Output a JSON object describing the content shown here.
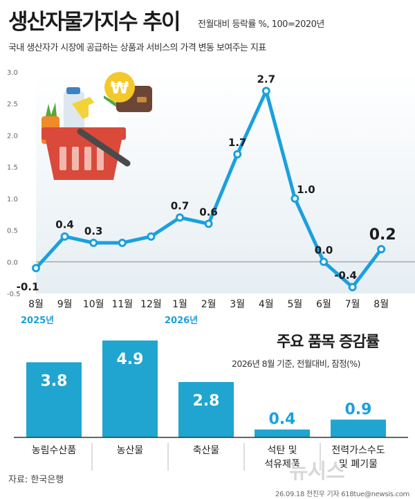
{
  "header": {
    "title": "생산자물가지수 추이",
    "unit": "전월대비 등락률 %, 100=2020년",
    "subtitle": "국내 생산자가 시장에 공급하는 상품과 서비스의 가격 변동 보여주는 지표"
  },
  "chart_data": [
    {
      "type": "line",
      "categories": [
        "8월",
        "9월",
        "10월",
        "11월",
        "12월",
        "1월",
        "2월",
        "3월",
        "4월",
        "5월",
        "6월",
        "7월",
        "8월"
      ],
      "year_labels": [
        {
          "index": 0,
          "label": "2025년"
        },
        {
          "index": 5,
          "label": "2026년"
        }
      ],
      "values": [
        -0.1,
        0.4,
        0.3,
        0.3,
        0.4,
        0.7,
        0.6,
        1.7,
        2.7,
        1.0,
        0.0,
        -0.4,
        0.2
      ],
      "data_labels": [
        "-0.1",
        "0.4",
        "0.3",
        "",
        "",
        "0.7",
        "0.6",
        "1.7",
        "2.7",
        "1.0",
        "0.0",
        "-0.4",
        "0.2"
      ],
      "yticks": [
        "3.0",
        "2.5",
        "2.0",
        "1.5",
        "1.0",
        "0.5",
        "0.0",
        "-0.5"
      ],
      "ylim": [
        -0.5,
        3.0
      ],
      "line_color": "#1aa0de",
      "grid": false
    },
    {
      "type": "bar",
      "title": "주요 품목 증감률",
      "subtitle": "2026년 8월 기준, 전월대비, 잠정(%)",
      "categories": [
        "농림수산품",
        "농산물",
        "축산물",
        "석탄 및\n석유제품",
        "전력가스수도\n및 폐기물"
      ],
      "values": [
        3.8,
        4.9,
        2.8,
        0.4,
        0.9
      ],
      "value_labels": [
        "3.8",
        "4.9",
        "2.8",
        "0.4",
        "0.9"
      ],
      "bar_color": "#20a5d0",
      "ylim": [
        0,
        5
      ]
    }
  ],
  "footer": {
    "source": "자료: 한국은행",
    "credit": "26.09.18 전진우 기자 618tue@newsis.com",
    "watermark": "뉴시스"
  }
}
